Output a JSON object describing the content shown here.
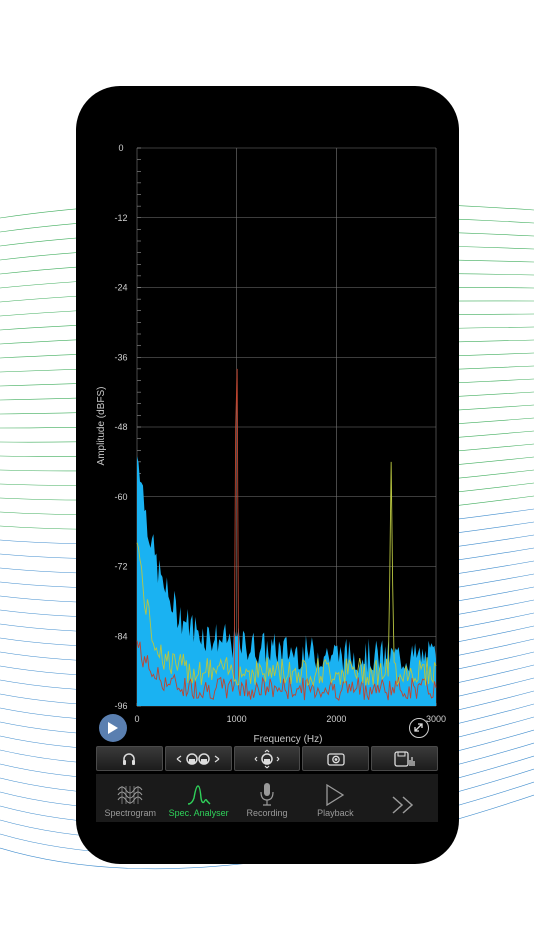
{
  "plot": {
    "y_axis_label": "Amplitude (dBFS)",
    "x_axis_label": "Frequency (Hz)",
    "y_ticks": [
      "0",
      "-12",
      "-24",
      "-36",
      "-48",
      "-60",
      "-72",
      "-84",
      "-96"
    ],
    "x_ticks": [
      "0",
      "1000",
      "2000",
      "3000"
    ],
    "y_range": [
      -96,
      0
    ],
    "x_range": [
      0,
      3000
    ],
    "trace_colors": {
      "fill": "#1ab2f2",
      "peak": "#7a3b2e",
      "secondary": "#b9c640",
      "grid": "#777777"
    }
  },
  "controls": {
    "buttons": [
      {
        "icon": "headphones-icon"
      },
      {
        "icon": "headphones-pair-arrows-icon"
      },
      {
        "icon": "headphones-move-icon"
      },
      {
        "icon": "camera-icon"
      },
      {
        "icon": "save-icon"
      }
    ]
  },
  "tabs": [
    {
      "label": "Spectrogram",
      "icon": "spectrogram-icon",
      "active": false
    },
    {
      "label": "Spec. Analyser",
      "icon": "spec-analyser-icon",
      "active": true
    },
    {
      "label": "Recording",
      "icon": "microphone-icon",
      "active": false
    },
    {
      "label": "Playback",
      "icon": "play-outline-icon",
      "active": false
    },
    {
      "label": "",
      "icon": "more-chevrons-icon",
      "active": false
    }
  ]
}
